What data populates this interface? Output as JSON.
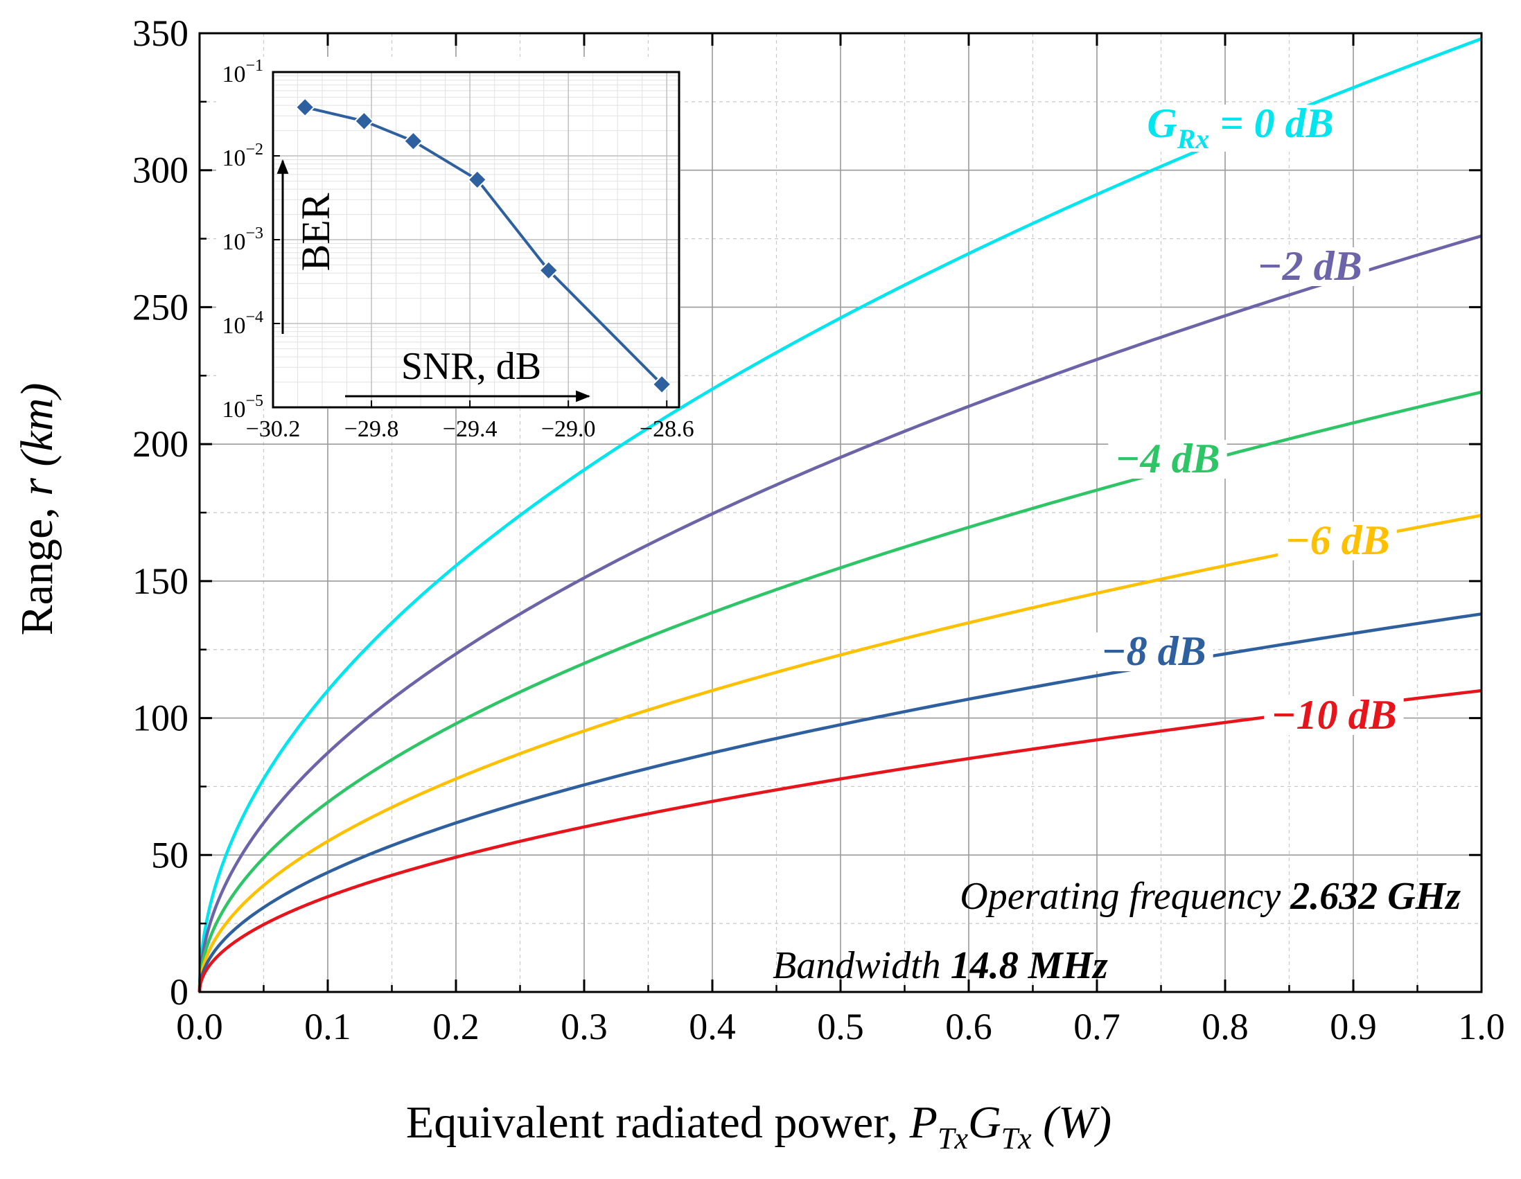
{
  "chart_data": [
    {
      "type": "line",
      "xlabel_prefix": "Equivalent radiated power, ",
      "xlabel_sym1": "P",
      "xlabel_sub1": "Tx",
      "xlabel_sym2": "G",
      "xlabel_sub2": "Tx",
      "xlabel_unit": " (W)",
      "ylabel_prefix": "Range, ",
      "ylabel_sym": "r",
      "ylabel_unit": " (km)",
      "xlim": [
        0.0,
        1.0
      ],
      "ylim": [
        0,
        350
      ],
      "xticks": [
        "0.0",
        "0.1",
        "0.2",
        "0.3",
        "0.4",
        "0.5",
        "0.6",
        "0.7",
        "0.8",
        "0.9",
        "1.0"
      ],
      "yticks": [
        "0",
        "50",
        "100",
        "150",
        "200",
        "250",
        "300",
        "350"
      ],
      "x": [
        0.0,
        0.1,
        0.2,
        0.3,
        0.4,
        0.5,
        0.6,
        0.7,
        0.8,
        0.9,
        1.0
      ],
      "series": [
        {
          "name": "G_Rx = 0 dB",
          "label": "0 dB",
          "color": "#00e5ee",
          "values": [
            0,
            110,
            156,
            191,
            220,
            246,
            269,
            291,
            311,
            330,
            348
          ]
        },
        {
          "name": "-2 dB",
          "label": "−2 dB",
          "color": "#6b64a8",
          "values": [
            0,
            87,
            124,
            151,
            175,
            195,
            214,
            231,
            247,
            262,
            276
          ]
        },
        {
          "name": "-4 dB",
          "label": "−4 dB",
          "color": "#2ec566",
          "values": [
            0,
            69,
            98,
            120,
            139,
            155,
            170,
            184,
            196,
            208,
            219
          ]
        },
        {
          "name": "-6 dB",
          "label": "−6 dB",
          "color": "#ffc000",
          "values": [
            0,
            55,
            78,
            95,
            110,
            123,
            135,
            146,
            156,
            165,
            174
          ]
        },
        {
          "name": "-8 dB",
          "label": "−8 dB",
          "color": "#2e5f9e",
          "values": [
            0,
            44,
            62,
            76,
            88,
            98,
            107,
            116,
            124,
            131,
            138
          ]
        },
        {
          "name": "-10 dB",
          "label": "−10 dB",
          "color": "#e8141b",
          "values": [
            0,
            35,
            49,
            60,
            69,
            78,
            85,
            92,
            98,
            104,
            110
          ]
        }
      ],
      "label_rx_prefix": "G",
      "label_rx_sub": "Rx",
      "label_rx_mid": " = ",
      "annotations": {
        "freq_prefix": "Operating frequency ",
        "freq_value": "2.632 GHz",
        "bw_prefix": "Bandwidth ",
        "bw_value": "14.8 MHz"
      }
    },
    {
      "type": "line",
      "role": "inset",
      "xlabel": "SNR, dB",
      "ylabel": "BER",
      "yscale": "log",
      "xlim": [
        -30.2,
        -28.55
      ],
      "ylim_exp": [
        -5,
        -1
      ],
      "xticks": [
        -30.2,
        -29.8,
        -29.4,
        -29.0,
        -28.6
      ],
      "xtick_labels": [
        "−30.2",
        "−29.8",
        "−29.4",
        "−29.0",
        "−28.6"
      ],
      "yticks_exp": [
        -5,
        -4,
        -3,
        -2,
        -1
      ],
      "ytick_base": "10",
      "ytick_exp_labels": [
        "−5",
        "−4",
        "−3",
        "−2",
        "−1"
      ],
      "color": "#2e5f9e",
      "points": [
        {
          "x": -30.07,
          "y": 0.038
        },
        {
          "x": -29.83,
          "y": 0.026
        },
        {
          "x": -29.63,
          "y": 0.015
        },
        {
          "x": -29.37,
          "y": 0.0052
        },
        {
          "x": -29.08,
          "y": 0.00043
        },
        {
          "x": -28.62,
          "y": 1.88e-05
        }
      ]
    }
  ]
}
